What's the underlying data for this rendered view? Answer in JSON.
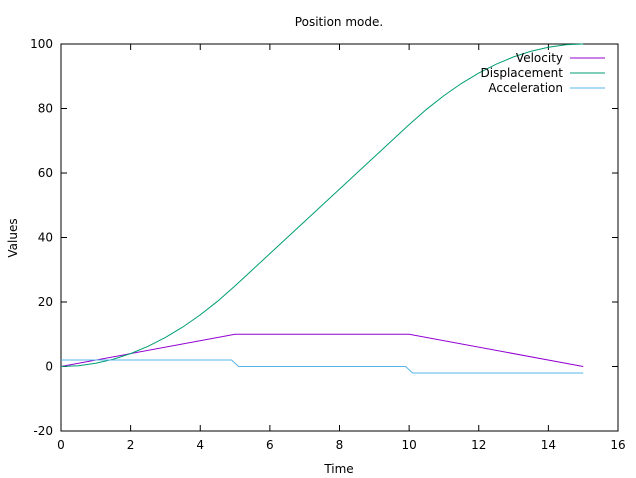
{
  "chart_data": {
    "type": "line",
    "title": "Position mode.",
    "xlabel": "Time",
    "ylabel": "Values",
    "xlim": [
      0,
      16
    ],
    "ylim": [
      -20,
      100
    ],
    "xticks": [
      0,
      2,
      4,
      6,
      8,
      10,
      12,
      14,
      16
    ],
    "yticks": [
      -20,
      0,
      20,
      40,
      60,
      80,
      100
    ],
    "grid": false,
    "legend_position": "top-right",
    "series": [
      {
        "name": "Velocity",
        "color": "#9400d3",
        "x": [
          0,
          5,
          10,
          15
        ],
        "y": [
          0,
          10,
          10,
          0
        ]
      },
      {
        "name": "Displacement",
        "color": "#009e73",
        "x": [
          0,
          0.5,
          1,
          1.5,
          2,
          2.5,
          3,
          3.5,
          4,
          4.5,
          5,
          6,
          7,
          8,
          9,
          10,
          10.5,
          11,
          11.5,
          12,
          12.5,
          13,
          13.5,
          14,
          14.5,
          15
        ],
        "y": [
          0,
          0.25,
          1,
          2.25,
          4,
          6.25,
          9,
          12.25,
          16,
          20.25,
          25,
          35,
          45,
          55,
          65,
          75,
          79.75,
          84,
          87.75,
          91,
          93.75,
          96,
          97.75,
          99,
          99.75,
          100
        ]
      },
      {
        "name": "Acceleration",
        "color": "#56b4e9",
        "x": [
          0,
          4.9,
          5.1,
          9.9,
          10.1,
          15
        ],
        "y": [
          2,
          2,
          0,
          0,
          -2,
          -2
        ]
      }
    ]
  }
}
